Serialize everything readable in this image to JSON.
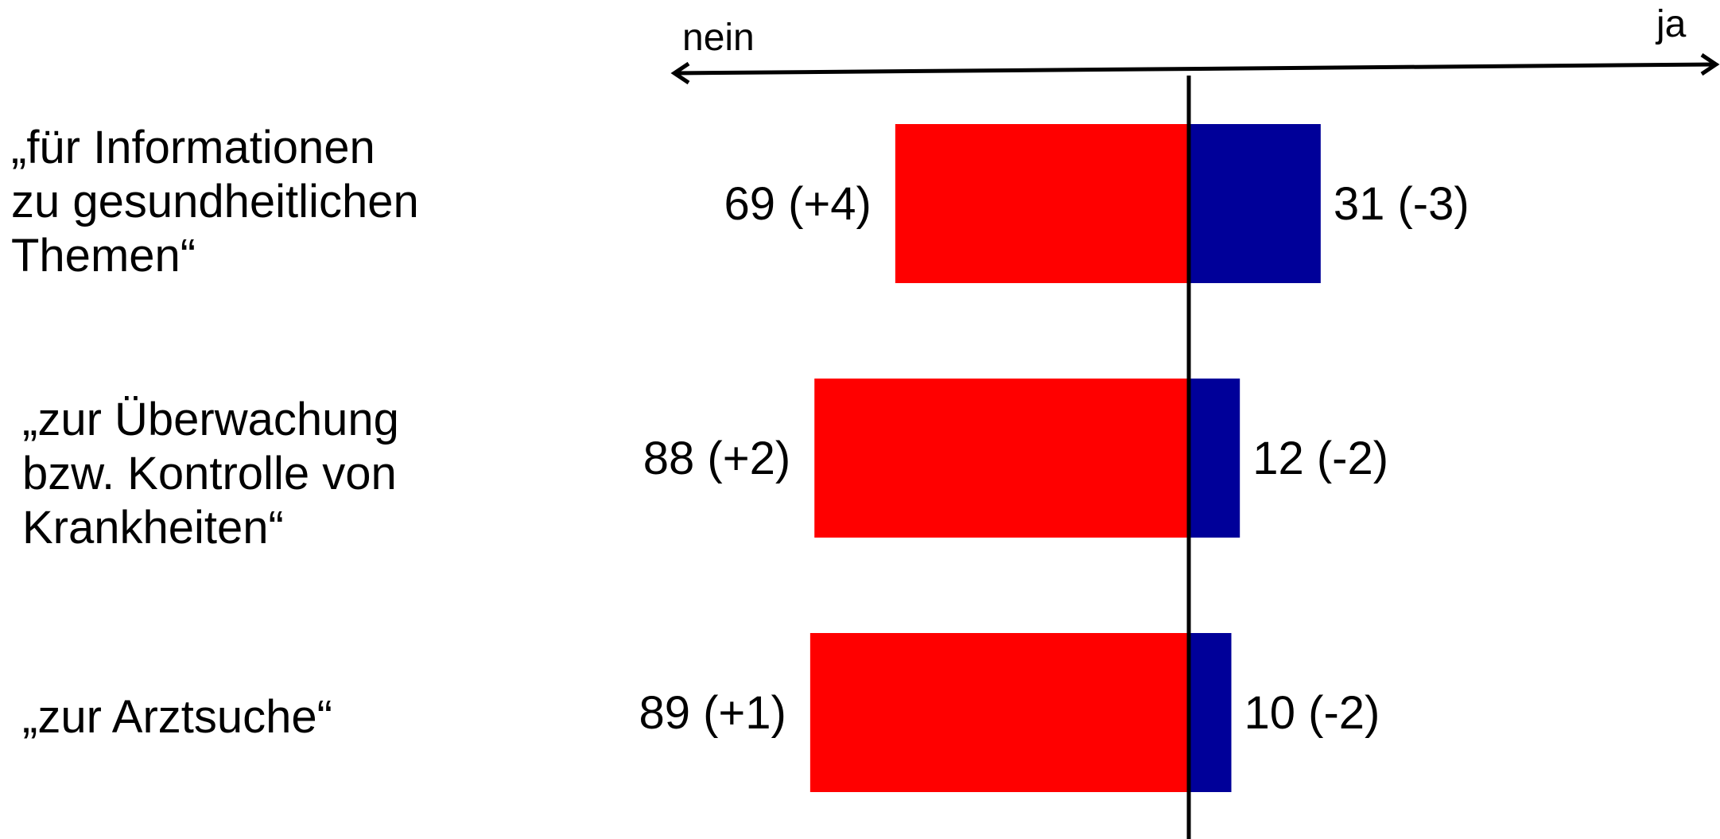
{
  "chart_data": {
    "type": "bar",
    "orientation": "horizontal-diverging",
    "axis": {
      "left_label": "nein",
      "right_label": "ja"
    },
    "categories": [
      "„für Informationen\nzu gesundheitlichen\nThemen“",
      "„zur Überwachung\nbzw. Kontrolle von\nKrankheiten“",
      "„zur Arztsuche“"
    ],
    "series": [
      {
        "color": "#ff0000",
        "values": [
          69,
          88,
          89
        ],
        "changes": [
          "+4",
          "+2",
          "+1"
        ]
      },
      {
        "color": "#000099",
        "values": [
          31,
          12,
          10
        ],
        "changes": [
          "-3",
          "-2",
          "-2"
        ]
      }
    ],
    "labels": {
      "nein": [
        "69 (+4)",
        "88 (+2)",
        "89 (+1)"
      ],
      "ja": [
        "31 (-3)",
        "12 (-2)",
        "10 (-2)"
      ]
    }
  }
}
